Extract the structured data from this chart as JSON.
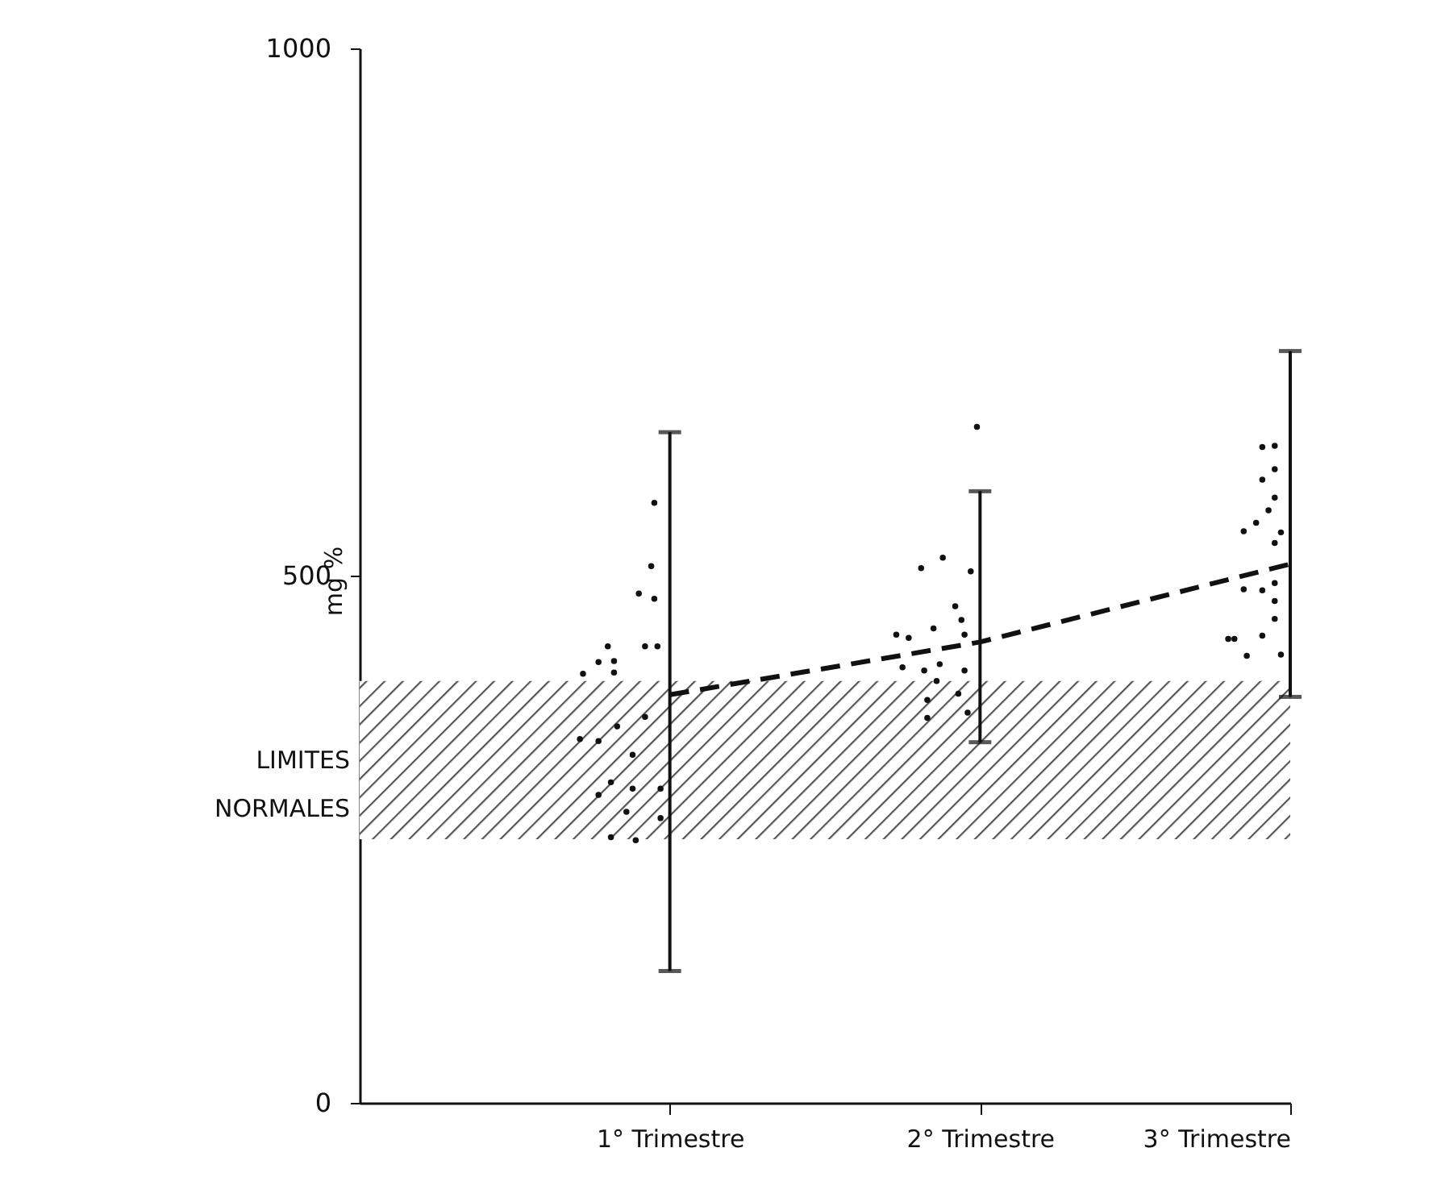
{
  "chart_data": {
    "type": "line",
    "ylabel": "mg %",
    "xlim": [
      0,
      3
    ],
    "xticks": [
      {
        "value": 1,
        "label": "1° Trimestre"
      },
      {
        "value": 2,
        "label": "2° Trimestre"
      },
      {
        "value": 3,
        "label": "3° Trimestre"
      }
    ],
    "ylim": [
      0,
      1000
    ],
    "yticks": [
      0,
      500,
      1000
    ],
    "grid": false,
    "bands": [
      {
        "axis": "y",
        "from": 250,
        "to": 400,
        "label": "LIMITES NORMALES",
        "color": "#555555"
      }
    ],
    "series": [
      {
        "type": "line",
        "color": "#111111",
        "line_style": "dashed",
        "marker": "none",
        "x": [
          1,
          2,
          3
        ],
        "values": [
          387,
          437,
          511
        ],
        "errors": [
          [
            125,
            636
          ],
          [
            342,
            580
          ],
          [
            385,
            713
          ]
        ]
      },
      {
        "type": "scatter",
        "color": "#111111",
        "marker": "circle",
        "x": [
          0.95,
          0.94,
          0.9,
          0.95,
          0.92,
          0.96,
          0.8,
          0.77,
          0.82,
          0.82,
          0.72,
          0.92,
          0.83,
          0.71,
          0.77,
          0.88,
          0.81,
          0.77,
          0.88,
          0.97,
          0.86,
          0.97,
          0.81,
          0.89,
          1.99,
          1.81,
          1.88,
          1.97,
          1.92,
          1.94,
          1.85,
          1.73,
          1.77,
          1.95,
          1.75,
          1.82,
          1.87,
          1.95,
          1.86,
          1.93,
          1.83,
          1.96,
          1.83,
          2.91,
          2.95,
          2.95,
          2.91,
          2.95,
          2.93,
          2.89,
          2.85,
          2.97,
          2.95,
          2.95,
          2.85,
          2.91,
          2.95,
          2.95,
          2.8,
          2.82,
          2.91,
          2.86,
          2.97
        ],
        "values": [
          569,
          509,
          483,
          478,
          433,
          433,
          433,
          418,
          419,
          408,
          407,
          366,
          357,
          345,
          343,
          330,
          304,
          292,
          298,
          298,
          276,
          270,
          252,
          249,
          641,
          507,
          517,
          504,
          471,
          458,
          450,
          444,
          441,
          444,
          413,
          410,
          416,
          410,
          400,
          388,
          382,
          370,
          365,
          622,
          623,
          601,
          591,
          574,
          562,
          550,
          542,
          541,
          531,
          493,
          487,
          486,
          476,
          459,
          440,
          440,
          443,
          424,
          425
        ]
      }
    ]
  }
}
